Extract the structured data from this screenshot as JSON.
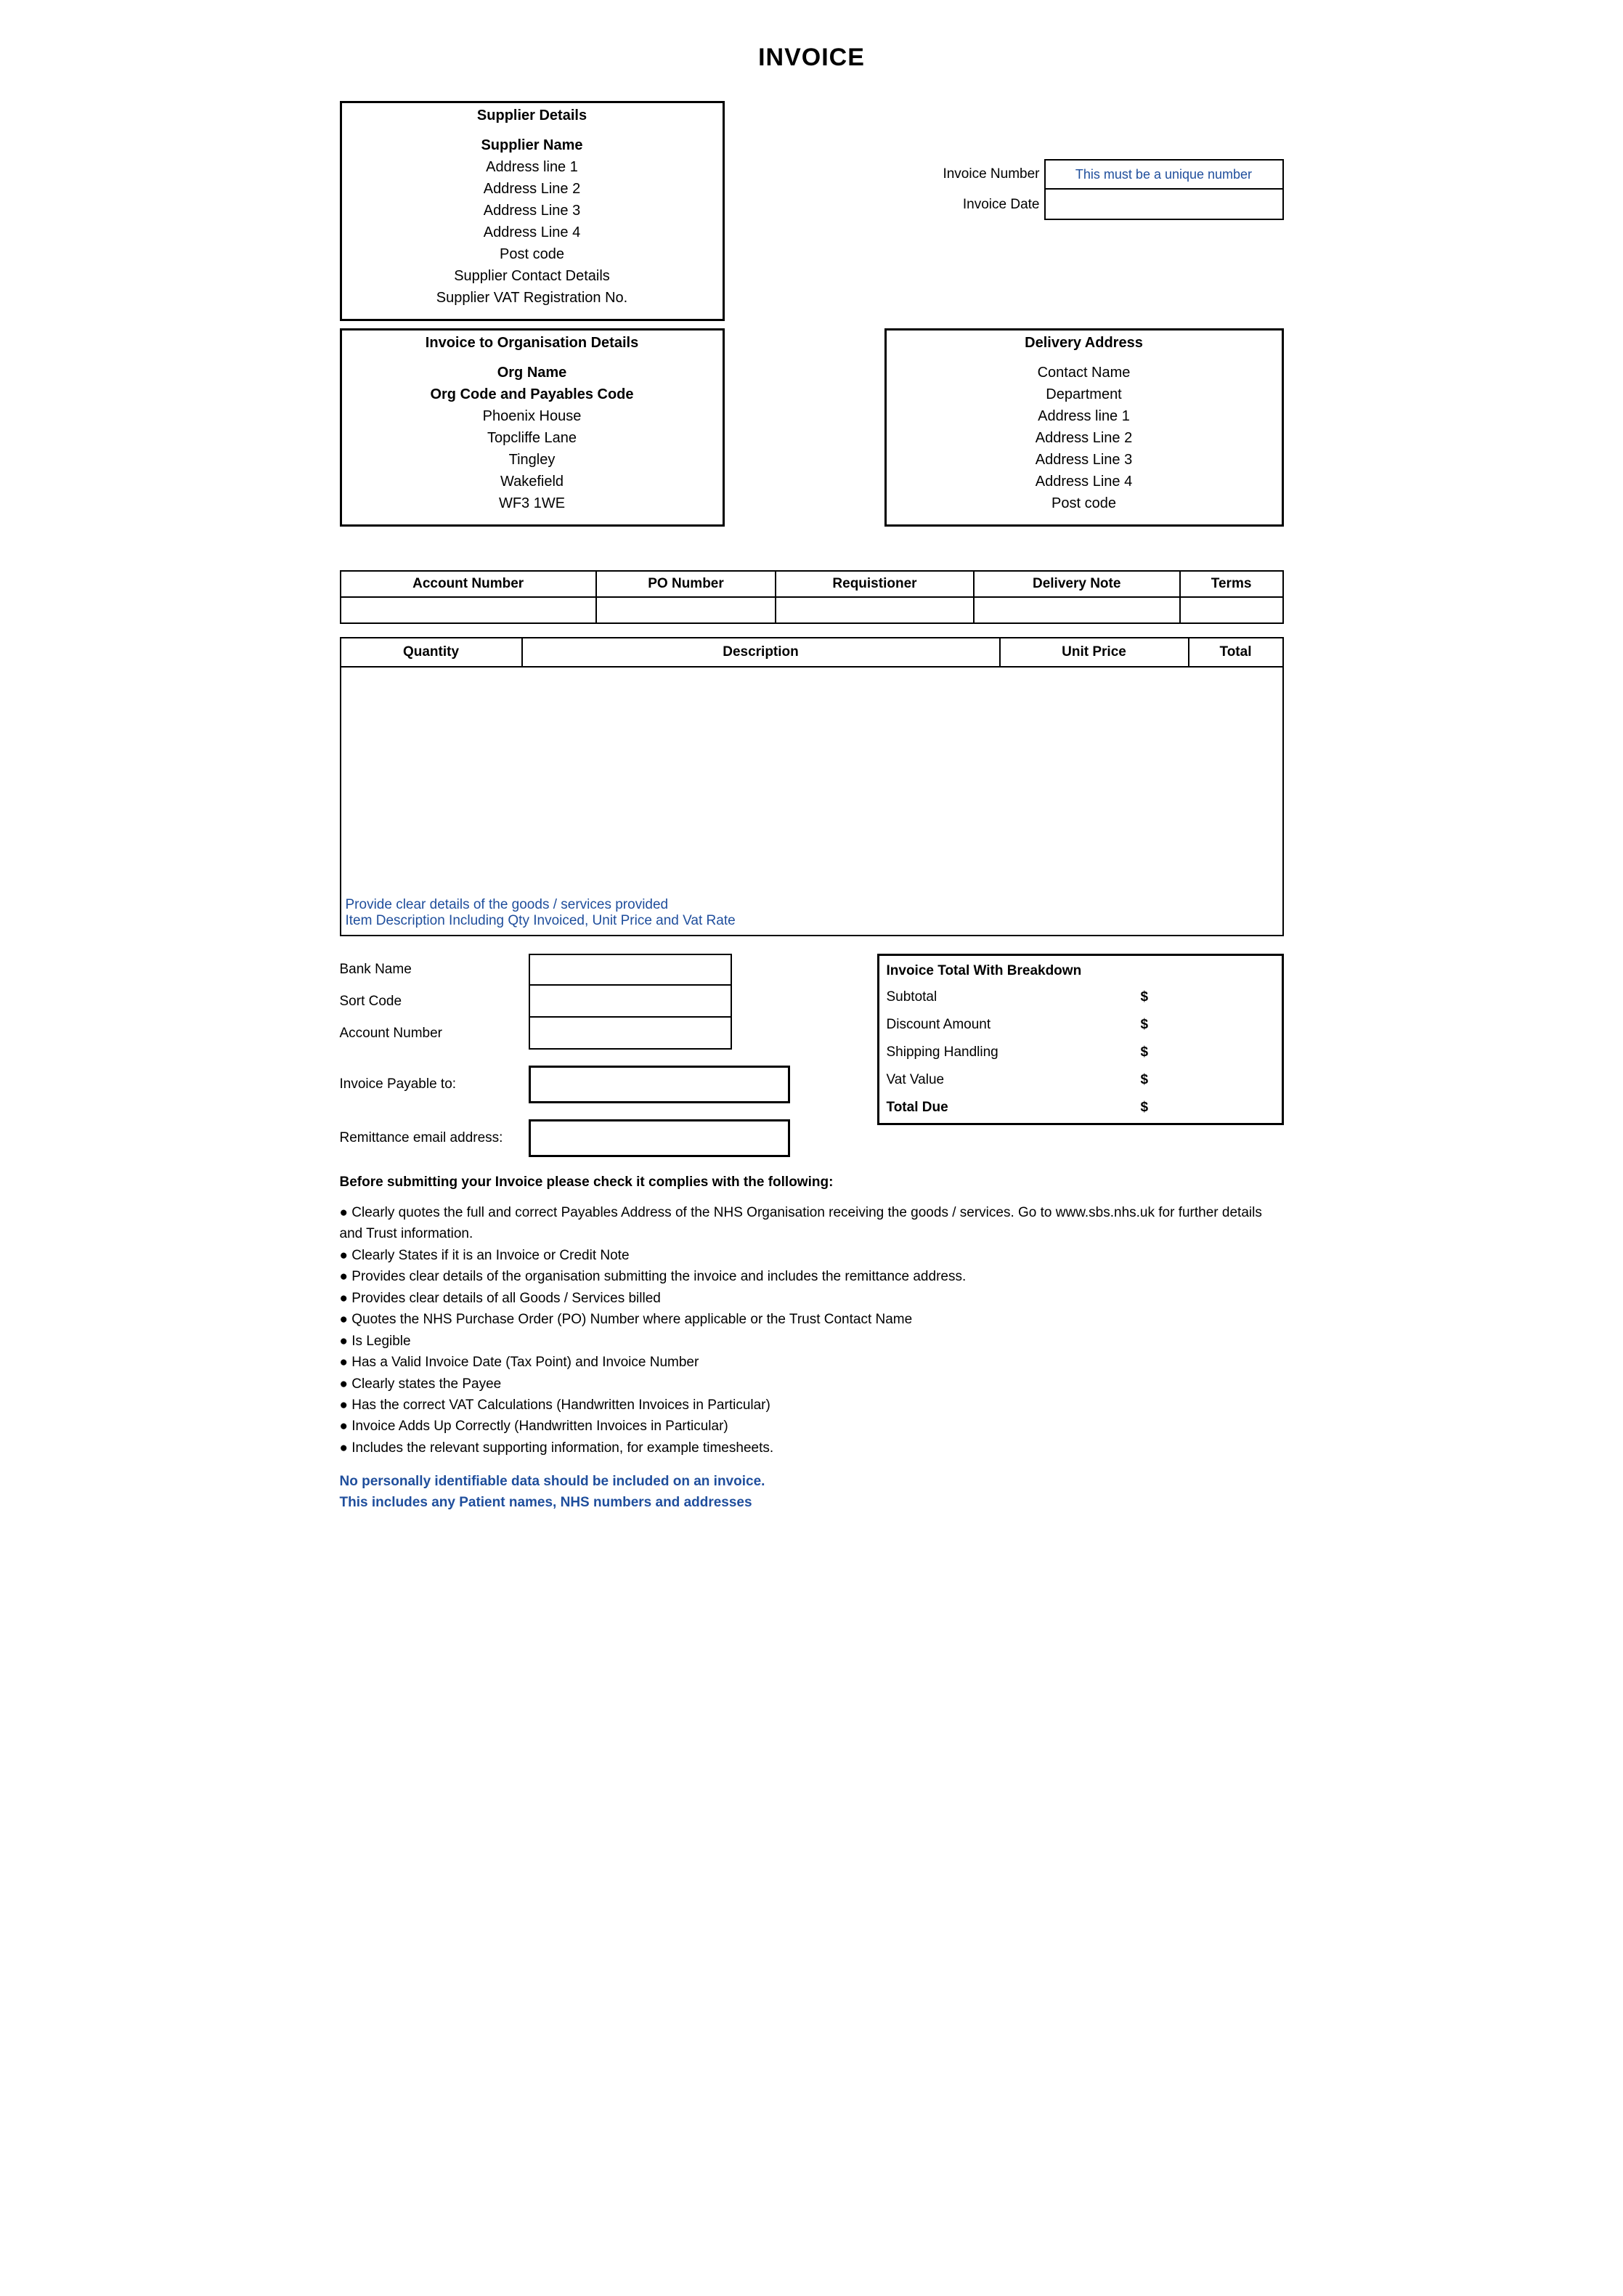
{
  "title": "INVOICE",
  "supplier": {
    "header": "Supplier Details",
    "name": "Supplier Name",
    "lines": [
      "Address line 1",
      "Address Line 2",
      "Address Line 3",
      "Address Line 4",
      "Post code",
      "Supplier Contact Details",
      "Supplier VAT Registration No."
    ]
  },
  "invoiceMeta": {
    "numberLabel": "Invoice Number",
    "numberHint": "This must be a unique number",
    "dateLabel": "Invoice Date",
    "dateValue": ""
  },
  "org": {
    "header": "Invoice to Organisation Details",
    "name": "Org Name",
    "code": "Org Code and Payables Code",
    "lines": [
      "Phoenix House",
      "Topcliffe Lane",
      "Tingley",
      "Wakefield",
      "WF3 1WE"
    ]
  },
  "delivery": {
    "header": "Delivery Address",
    "lines": [
      "Contact Name",
      "Department",
      "Address line 1",
      "Address Line 2",
      "Address Line 3",
      "Address Line 4",
      "Post code"
    ]
  },
  "orderTable": {
    "headers": [
      "Account Number",
      "PO Number",
      "Requistioner",
      "Delivery Note",
      "Terms"
    ],
    "values": [
      "",
      "",
      "",
      "",
      ""
    ]
  },
  "itemsTable": {
    "headers": [
      "Quantity",
      "Description",
      "Unit Price",
      "Total"
    ],
    "hint1": "Provide clear details of the goods / services provided",
    "hint2": "Item Description Including Qty Invoiced, Unit Price and Vat Rate"
  },
  "bank": {
    "bankName": {
      "label": "Bank Name",
      "value": ""
    },
    "sortCode": {
      "label": "Sort Code",
      "value": ""
    },
    "accountNumber": {
      "label": "Account Number",
      "value": ""
    },
    "payableTo": {
      "label": "Invoice Payable to:",
      "value": ""
    },
    "remitEmail": {
      "label": "Remittance email address:",
      "value": ""
    }
  },
  "totals": {
    "header": "Invoice Total With Breakdown",
    "currency": "$",
    "rows": [
      {
        "label": "Subtotal"
      },
      {
        "label": "Discount Amount"
      },
      {
        "label": "Shipping  Handling"
      },
      {
        "label": "Vat Value"
      }
    ],
    "totalDue": "Total Due"
  },
  "compliance": {
    "header": "Before submitting your Invoice please check it complies with the following:",
    "items": [
      "Clearly quotes the full and correct Payables Address of the NHS Organisation receiving the goods / services. Go to www.sbs.nhs.uk for further details and Trust information.",
      "Clearly States if it is an Invoice or Credit Note",
      "Provides clear details of the organisation submitting the invoice and includes the remittance address.",
      "Provides clear details of all Goods / Services billed",
      "Quotes the NHS Purchase Order (PO) Number where applicable or the Trust Contact Name",
      "Is Legible",
      "Has a Valid Invoice Date (Tax Point) and Invoice Number",
      "Clearly states the Payee",
      "Has the correct VAT Calculations (Handwritten Invoices in Particular)",
      "Invoice Adds Up Correctly (Handwritten Invoices in Particular)",
      "Includes the relevant supporting information, for example timesheets."
    ],
    "warning1": "No personally identifiable data should be included on an invoice.",
    "warning2": "This includes any Patient names, NHS numbers and addresses"
  }
}
